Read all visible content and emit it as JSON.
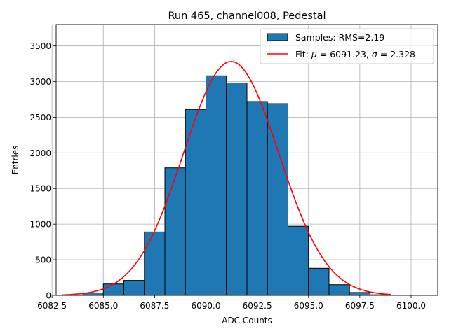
{
  "chart_data": {
    "type": "bar",
    "title": "Run 465, channel008, Pedestal",
    "xlabel": "ADC Counts",
    "ylabel": "Entries",
    "xlim": [
      6082.7,
      6101.3
    ],
    "ylim": [
      0,
      3800
    ],
    "grid": true,
    "legend_position": "top-right",
    "x_ticks": [
      6082.5,
      6085.0,
      6087.5,
      6090.0,
      6092.5,
      6095.0,
      6097.5,
      6100.0
    ],
    "x_tick_labels": [
      "6082.5",
      "6085.0",
      "6087.5",
      "6090.0",
      "6092.5",
      "6095.0",
      "6097.5",
      "6100.0"
    ],
    "y_ticks": [
      0,
      500,
      1000,
      1500,
      2000,
      2500,
      3000,
      3500
    ],
    "y_tick_labels": [
      "0",
      "500",
      "1000",
      "1500",
      "2000",
      "2500",
      "3000",
      "3500"
    ],
    "histogram": {
      "name": "Samples: RMS=2.19",
      "color": "#1f77b4",
      "edge_color": "#000000",
      "bins": [
        {
          "x0": 6083.0,
          "x1": 6084.0,
          "value": 5
        },
        {
          "x0": 6084.0,
          "x1": 6085.0,
          "value": 35
        },
        {
          "x0": 6085.0,
          "x1": 6086.0,
          "value": 160
        },
        {
          "x0": 6086.0,
          "x1": 6087.0,
          "value": 210
        },
        {
          "x0": 6087.0,
          "x1": 6088.0,
          "value": 890
        },
        {
          "x0": 6088.0,
          "x1": 6089.0,
          "value": 1790
        },
        {
          "x0": 6089.0,
          "x1": 6090.0,
          "value": 2610
        },
        {
          "x0": 6090.0,
          "x1": 6091.0,
          "value": 3080
        },
        {
          "x0": 6091.0,
          "x1": 6092.0,
          "value": 2980
        },
        {
          "x0": 6092.0,
          "x1": 6093.0,
          "value": 2720
        },
        {
          "x0": 6093.0,
          "x1": 6094.0,
          "value": 2690
        },
        {
          "x0": 6094.0,
          "x1": 6095.0,
          "value": 970
        },
        {
          "x0": 6095.0,
          "x1": 6096.0,
          "value": 380
        },
        {
          "x0": 6096.0,
          "x1": 6097.0,
          "value": 150
        },
        {
          "x0": 6097.0,
          "x1": 6098.0,
          "value": 40
        },
        {
          "x0": 6098.0,
          "x1": 6099.0,
          "value": 8
        }
      ]
    },
    "fit": {
      "name_prefix": "Fit: ",
      "name_mu": "μ",
      "name_mid": " = 6091.23, ",
      "name_sigma": "σ",
      "name_suffix": " = 2.328",
      "color": "#ff0000",
      "mu": 6091.23,
      "sigma": 2.328,
      "amplitude": 3280,
      "x_range": [
        6083.0,
        6099.0
      ]
    }
  }
}
